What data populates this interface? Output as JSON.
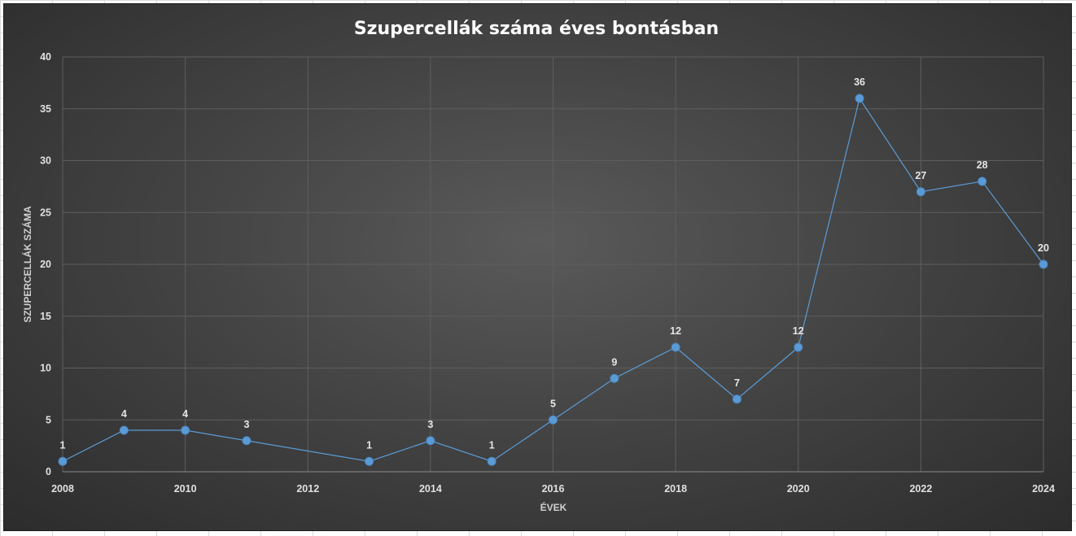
{
  "chart_data": {
    "type": "scatter",
    "title": "Szupercellák száma éves bontásban",
    "xlabel": "ÉVEK",
    "ylabel": "SZUPERCELLÁK SZÁMA",
    "xlim": [
      2008,
      2024
    ],
    "ylim": [
      0,
      40
    ],
    "x_ticks": [
      "2008",
      "2010",
      "2012",
      "2014",
      "2016",
      "2018",
      "2020",
      "2022",
      "2024"
    ],
    "y_ticks": [
      "0",
      "5",
      "10",
      "15",
      "20",
      "25",
      "30",
      "35",
      "40"
    ],
    "grid": true,
    "lines": true,
    "series": [
      {
        "x": [
          2008,
          2009,
          2010,
          2011,
          2013,
          2014,
          2015,
          2016,
          2017,
          2018,
          2019,
          2020,
          2021,
          2022,
          2023,
          2024
        ],
        "y": [
          1,
          4,
          4,
          3,
          1,
          3,
          1,
          5,
          9,
          12,
          7,
          12,
          36,
          27,
          28,
          20
        ],
        "color": "#5b9bd5"
      }
    ],
    "colors": {
      "background": "#404040",
      "line": "#5b9bd5",
      "grid": "#5e5e5e",
      "text": "#e0e0e0"
    }
  }
}
